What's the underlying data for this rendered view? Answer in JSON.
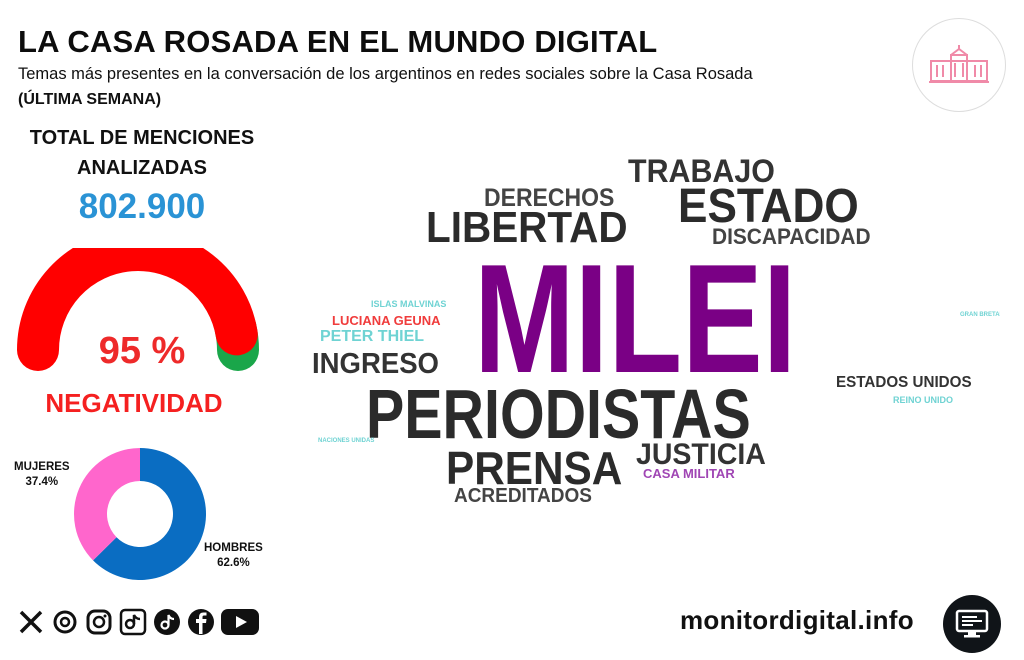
{
  "header": {
    "title": "LA CASA ROSADA EN EL MUNDO DIGITAL",
    "subtitle": "Temas más presentes en la conversación de los argentinos en redes sociales sobre la Casa Rosada",
    "period": "(ÚLTIMA SEMANA)"
  },
  "total": {
    "label_line1": "TOTAL DE MENCIONES",
    "label_line2": "ANALIZADAS",
    "value": "802.900"
  },
  "sentiment": {
    "value_text": "95 %",
    "label": "NEGATIVIDAD",
    "negative_fraction": 0.95,
    "colors": {
      "negative": "#ff0000",
      "positive": "#1aa64a"
    }
  },
  "gender": {
    "women_label": "MUJERES",
    "women_value": "37.4%",
    "women_fraction": 0.374,
    "men_label": "HOMBRES",
    "men_value": "62.6%",
    "men_fraction": 0.626,
    "colors": {
      "women": "#ff66cc",
      "men": "#0a6dc2"
    }
  },
  "wordcloud": {
    "words": [
      {
        "text": "MILEI",
        "color": "#7a0085"
      },
      {
        "text": "PERIODISTAS",
        "color": "#2b2b2b"
      },
      {
        "text": "ESTADO",
        "color": "#2b2b2b"
      },
      {
        "text": "LIBERTAD",
        "color": "#2b2b2b"
      },
      {
        "text": "TRABAJO",
        "color": "#333333"
      },
      {
        "text": "DERECHOS",
        "color": "#444444"
      },
      {
        "text": "DISCAPACIDAD",
        "color": "#444444"
      },
      {
        "text": "PRENSA",
        "color": "#2b2b2b"
      },
      {
        "text": "JUSTICIA",
        "color": "#333333"
      },
      {
        "text": "INGRESO",
        "color": "#333333"
      },
      {
        "text": "ACREDITADOS",
        "color": "#444444"
      },
      {
        "text": "ESTADOS UNIDOS",
        "color": "#333333"
      },
      {
        "text": "CASA MILITAR",
        "color": "#a046b4"
      },
      {
        "text": "LUCIANA GEUNA",
        "color": "#f03c3c"
      },
      {
        "text": "PETER THIEL",
        "color": "#6fd3d3"
      },
      {
        "text": "ISLAS MALVINAS",
        "color": "#6fd3d3"
      },
      {
        "text": "REINO UNIDO",
        "color": "#6fd3d3"
      },
      {
        "text": "NACIONES UNIDAS",
        "color": "#6fd3d3"
      },
      {
        "text": "GRAN BRETAÑA",
        "color": "#6fd3d3"
      }
    ]
  },
  "footer": {
    "social_icons": [
      "x-icon",
      "threads-icon",
      "instagram-icon",
      "tiktok-icon",
      "tiktok-icon",
      "facebook-icon",
      "youtube-icon"
    ],
    "website": "monitordigital.info"
  }
}
